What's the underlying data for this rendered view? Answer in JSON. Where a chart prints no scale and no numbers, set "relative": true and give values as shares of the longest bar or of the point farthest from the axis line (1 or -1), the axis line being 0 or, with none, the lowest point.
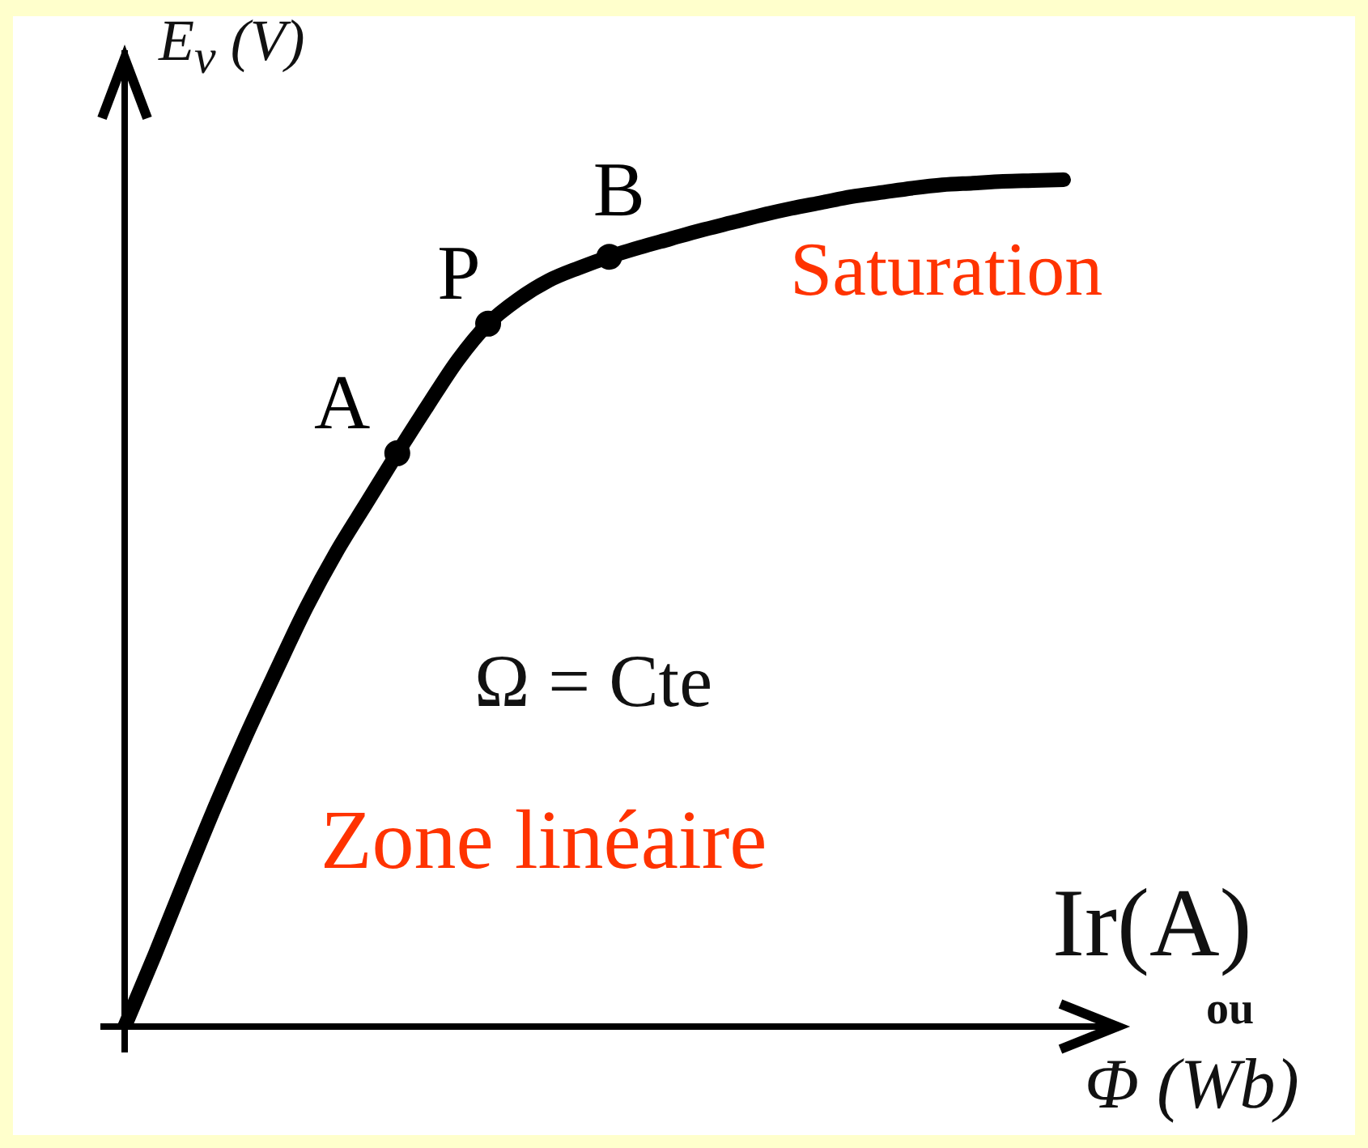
{
  "chart_data": {
    "type": "line",
    "relative": true,
    "ylabel": "E$_{v}$ (V)",
    "xlabel": "Ir(A)\nou\nΦ (Wb)",
    "annotations": [
      "Saturation",
      "Zone linéaire",
      "Ω = Cte"
    ],
    "categories": [
      null,
      null,
      null,
      null,
      null,
      null,
      null,
      null,
      null,
      null,
      null,
      null,
      null,
      null,
      null,
      null,
      null,
      null,
      null,
      null,
      null,
      null,
      null,
      null,
      null,
      null,
      null,
      null,
      null,
      null,
      null,
      null
    ],
    "series": [
      {
        "color": "#000000",
        "values": [
          0,
          0.085,
          0.174,
          0.261,
          0.343,
          0.42,
          0.495,
          0.561,
          0.619,
          0.677,
          0.733,
          0.787,
          0.83,
          0.859,
          0.881,
          0.896,
          0.909,
          0.92,
          0.93,
          0.94,
          0.949,
          0.958,
          0.966,
          0.973,
          0.98,
          0.985,
          0.99,
          0.994,
          0.996,
          0.998,
          0.999,
          1
        ]
      },
      {
        "name": "A",
        "marker": "circle",
        "color": "#000000",
        "values": [
          null,
          null,
          null,
          null,
          null,
          null,
          null,
          null,
          null,
          0.677,
          null,
          null,
          null,
          null,
          null,
          null,
          null,
          null,
          null,
          null,
          null,
          null,
          null,
          null,
          null,
          null,
          null,
          null,
          null,
          null,
          null,
          null
        ]
      },
      {
        "name": "P",
        "marker": "circle",
        "color": "#000000",
        "values": [
          null,
          null,
          null,
          null,
          null,
          null,
          null,
          null,
          null,
          null,
          null,
          null,
          0.83,
          null,
          null,
          null,
          null,
          null,
          null,
          null,
          null,
          null,
          null,
          null,
          null,
          null,
          null,
          null,
          null,
          null,
          null,
          null
        ]
      },
      {
        "name": "B",
        "marker": "circle",
        "color": "#000000",
        "values": [
          null,
          null,
          null,
          null,
          null,
          null,
          null,
          null,
          null,
          null,
          null,
          null,
          null,
          null,
          null,
          null,
          0.909,
          null,
          null,
          null,
          null,
          null,
          null,
          null,
          null,
          null,
          null,
          null,
          null,
          null,
          null,
          null
        ]
      }
    ]
  }
}
